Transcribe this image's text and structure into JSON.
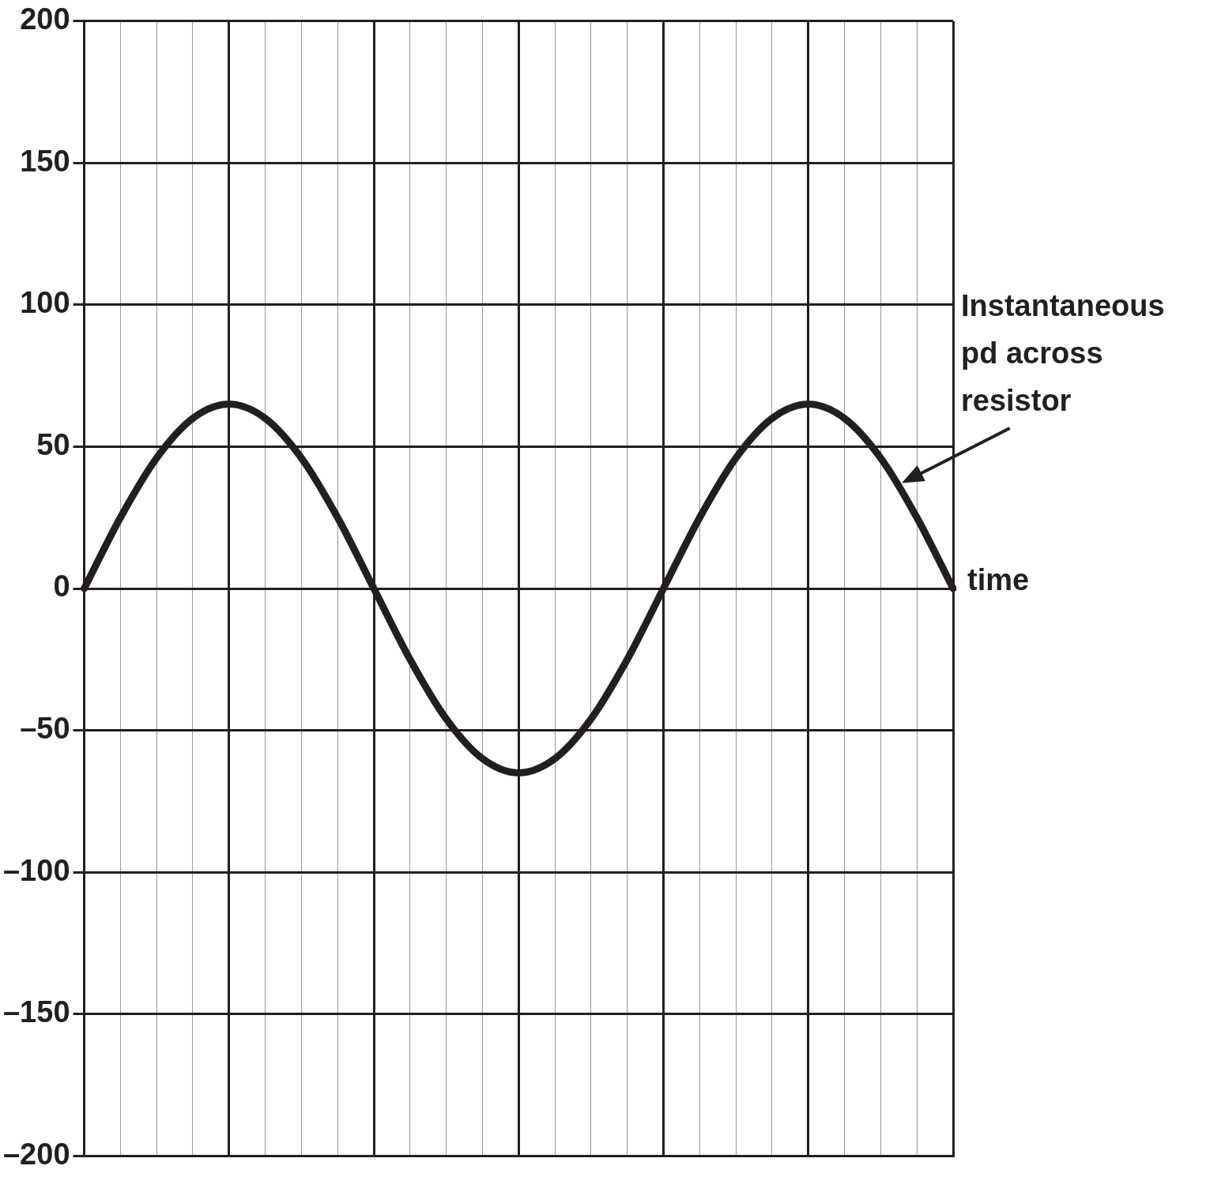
{
  "chart_data": {
    "type": "line",
    "xlabel": "time",
    "categories": [
      null,
      null,
      null,
      null,
      null,
      null,
      null,
      null,
      null,
      null,
      null,
      null,
      null,
      null,
      null,
      null,
      null,
      null,
      null,
      null,
      null,
      null,
      null,
      null,
      null
    ],
    "series": [
      {
        "name": "Instantaneous pd across resistor",
        "color": "#231f20",
        "values": [
          0,
          25,
          46,
          60,
          65,
          60,
          46,
          25,
          0,
          -25,
          -46,
          -60,
          -65,
          -60,
          -46,
          -25,
          0,
          25,
          46,
          60,
          65,
          60,
          46,
          25,
          0
        ]
      }
    ],
    "ylim": [
      -200,
      200
    ],
    "yticks": [
      {
        "value": -200,
        "label": "–200"
      },
      {
        "value": -150,
        "label": "–150"
      },
      {
        "value": -100,
        "label": "–100"
      },
      {
        "value": -50,
        "label": "–50"
      },
      0,
      50,
      100,
      150,
      200
    ],
    "grid": true,
    "legend": false,
    "tick_labels": "y",
    "marker": "none",
    "line_style": "solid"
  }
}
